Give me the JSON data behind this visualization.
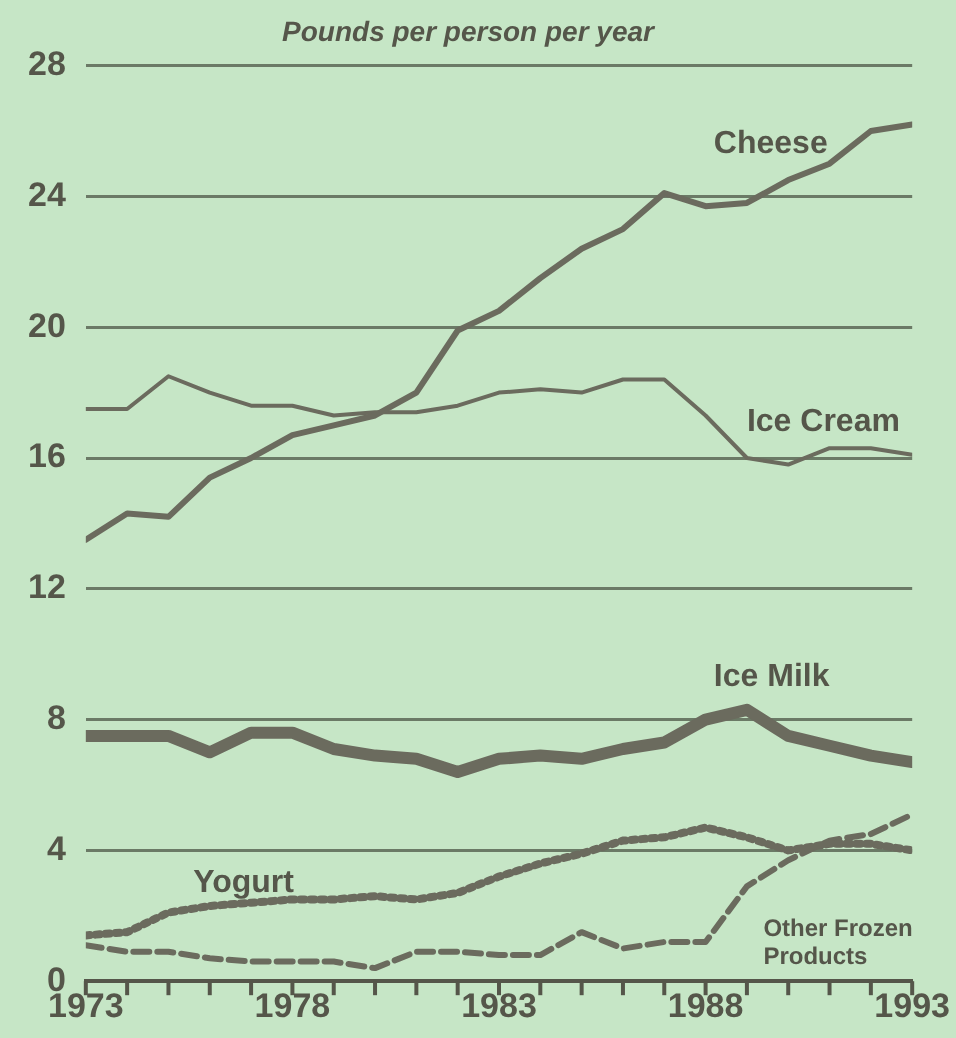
{
  "chart_data": {
    "type": "line",
    "title": "Pounds per person per year",
    "x": [
      1973,
      1974,
      1975,
      1976,
      1977,
      1978,
      1979,
      1980,
      1981,
      1982,
      1983,
      1984,
      1985,
      1986,
      1987,
      1988,
      1989,
      1990,
      1991,
      1992,
      1993
    ],
    "series": [
      {
        "name": "Cheese",
        "color": "#6b6b5e",
        "values": [
          13.5,
          14.3,
          14.2,
          15.4,
          16.0,
          16.7,
          17.0,
          17.3,
          18.0,
          19.9,
          20.5,
          21.5,
          22.4,
          23.0,
          24.1,
          23.7,
          23.8,
          24.5,
          25.0,
          26.0,
          26.2
        ]
      },
      {
        "name": "Ice Cream",
        "color": "#6b6b5e",
        "values": [
          17.5,
          17.5,
          18.5,
          18.0,
          17.6,
          17.6,
          17.3,
          17.4,
          17.4,
          17.6,
          18.0,
          18.1,
          18.0,
          18.4,
          18.4,
          17.3,
          16.0,
          15.8,
          16.3,
          16.3,
          16.1
        ]
      },
      {
        "name": "Ice Milk",
        "color": "#6b6b5e",
        "values": [
          7.5,
          7.5,
          7.5,
          7.0,
          7.6,
          7.6,
          7.1,
          6.9,
          6.8,
          6.4,
          6.8,
          6.9,
          6.8,
          7.1,
          7.3,
          8.0,
          8.3,
          7.5,
          7.2,
          6.9,
          6.7
        ]
      },
      {
        "name": "Yogurt",
        "color": "#6b6b5e",
        "line_style": "dotted",
        "values": [
          1.4,
          1.5,
          2.1,
          2.3,
          2.4,
          2.5,
          2.5,
          2.6,
          2.5,
          2.7,
          3.2,
          3.6,
          3.9,
          4.3,
          4.4,
          4.7,
          4.4,
          4.0,
          4.2,
          4.2,
          4.0
        ]
      },
      {
        "name": "Other Frozen Products",
        "color": "#6b6b5e",
        "line_style": "dashed",
        "values": [
          1.1,
          0.9,
          0.9,
          0.7,
          0.6,
          0.6,
          0.6,
          0.4,
          0.9,
          0.9,
          0.8,
          0.8,
          1.5,
          1.0,
          1.2,
          1.2,
          2.9,
          3.7,
          4.3,
          4.5,
          5.1
        ]
      }
    ],
    "xlim": [
      1973,
      1993
    ],
    "xticks": [
      1973,
      {
        "value": 1974,
        "label": null
      },
      {
        "value": 1975,
        "label": null
      },
      {
        "value": 1976,
        "label": null
      },
      {
        "value": 1977,
        "label": null
      },
      1978,
      {
        "value": 1979,
        "label": null
      },
      {
        "value": 1980,
        "label": null
      },
      {
        "value": 1981,
        "label": null
      },
      {
        "value": 1982,
        "label": null
      },
      1983,
      {
        "value": 1984,
        "label": null
      },
      {
        "value": 1985,
        "label": null
      },
      {
        "value": 1986,
        "label": null
      },
      {
        "value": 1987,
        "label": null
      },
      1988,
      {
        "value": 1989,
        "label": null
      },
      {
        "value": 1990,
        "label": null
      },
      {
        "value": 1991,
        "label": null
      },
      {
        "value": 1992,
        "label": null
      },
      1993
    ],
    "ylim": [
      0,
      28
    ],
    "yticks": [
      0,
      4,
      8,
      12,
      16,
      20,
      24,
      28
    ],
    "grid": "y",
    "legend": false,
    "marker": "none",
    "line_style": "solid"
  }
}
